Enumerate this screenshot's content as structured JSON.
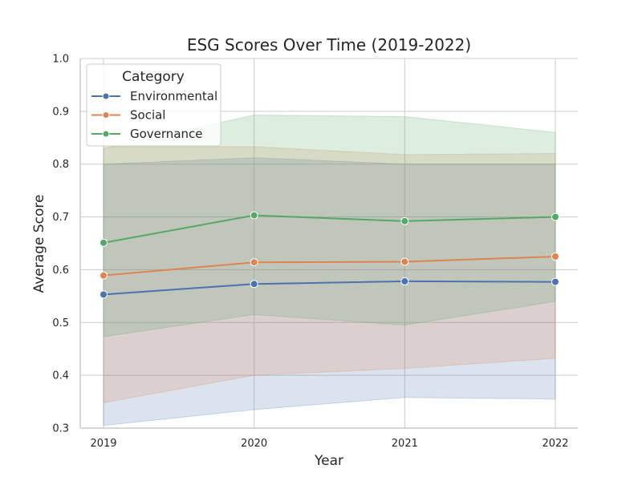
{
  "chart_data": {
    "type": "line",
    "title": "ESG Scores Over Time (2019-2022)",
    "xlabel": "Year",
    "ylabel": "Average Score",
    "categories": [
      "2019",
      "2020",
      "2021",
      "2022"
    ],
    "ylim": [
      0.3,
      1.0
    ],
    "yticks": [
      "0.3",
      "0.4",
      "0.5",
      "0.6",
      "0.7",
      "0.8",
      "0.9",
      "1.0"
    ],
    "grid": true,
    "legend": {
      "title": "Category",
      "placement": "top-left"
    },
    "series": [
      {
        "name": "Environmental",
        "color": "#4c72b0",
        "values": [
          0.553,
          0.573,
          0.578,
          0.577
        ],
        "ci_low": [
          0.305,
          0.335,
          0.358,
          0.355
        ],
        "ci_high": [
          0.8,
          0.812,
          0.8,
          0.8
        ]
      },
      {
        "name": "Social",
        "color": "#dd8452",
        "values": [
          0.589,
          0.614,
          0.615,
          0.625
        ],
        "ci_low": [
          0.348,
          0.4,
          0.413,
          0.432
        ],
        "ci_high": [
          0.833,
          0.833,
          0.818,
          0.82
        ]
      },
      {
        "name": "Governance",
        "color": "#55a868",
        "values": [
          0.651,
          0.703,
          0.692,
          0.7
        ],
        "ci_low": [
          0.473,
          0.515,
          0.495,
          0.54
        ],
        "ci_high": [
          0.829,
          0.893,
          0.89,
          0.86
        ]
      }
    ]
  }
}
